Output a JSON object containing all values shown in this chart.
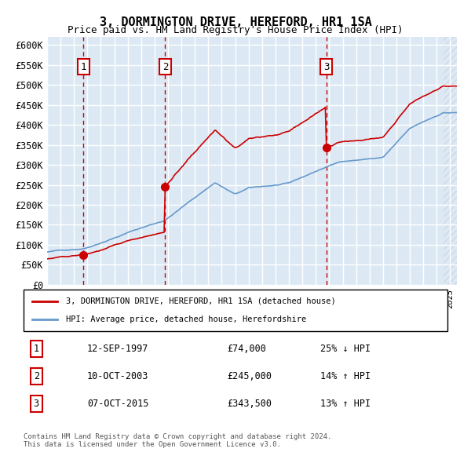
{
  "title": "3, DORMINGTON DRIVE, HEREFORD, HR1 1SA",
  "subtitle": "Price paid vs. HM Land Registry's House Price Index (HPI)",
  "sale_dates": [
    "1997-09-12",
    "2003-10-10",
    "2015-10-07"
  ],
  "sale_prices": [
    74000,
    245000,
    343500
  ],
  "sale_labels": [
    "1",
    "2",
    "3"
  ],
  "sale_notes": [
    "12-SEP-1997",
    "10-OCT-2003",
    "07-OCT-2015"
  ],
  "sale_price_strs": [
    "£74,000",
    "£245,000",
    "£343,500"
  ],
  "sale_hpi_strs": [
    "25% ↓ HPI",
    "14% ↑ HPI",
    "13% ↑ HPI"
  ],
  "ylabel_ticks": [
    0,
    50000,
    100000,
    150000,
    200000,
    250000,
    300000,
    350000,
    400000,
    450000,
    500000,
    550000,
    600000
  ],
  "ylabel_labels": [
    "£0",
    "£50K",
    "£100K",
    "£150K",
    "£200K",
    "£250K",
    "£300K",
    "£350K",
    "£400K",
    "£450K",
    "£500K",
    "£550K",
    "£600K"
  ],
  "ylim": [
    0,
    620000
  ],
  "xlim_start": 1995.0,
  "xlim_end": 2025.5,
  "red_color": "#cc0000",
  "blue_color": "#6699cc",
  "background_color": "#dce9f5",
  "hatch_color": "#c0c8d8",
  "grid_color": "#ffffff",
  "dashed_color": "#cc0000",
  "legend_label_red": "3, DORMINGTON DRIVE, HEREFORD, HR1 1SA (detached house)",
  "legend_label_blue": "HPI: Average price, detached house, Herefordshire",
  "footnote": "Contains HM Land Registry data © Crown copyright and database right 2024.\nThis data is licensed under the Open Government Licence v3.0."
}
